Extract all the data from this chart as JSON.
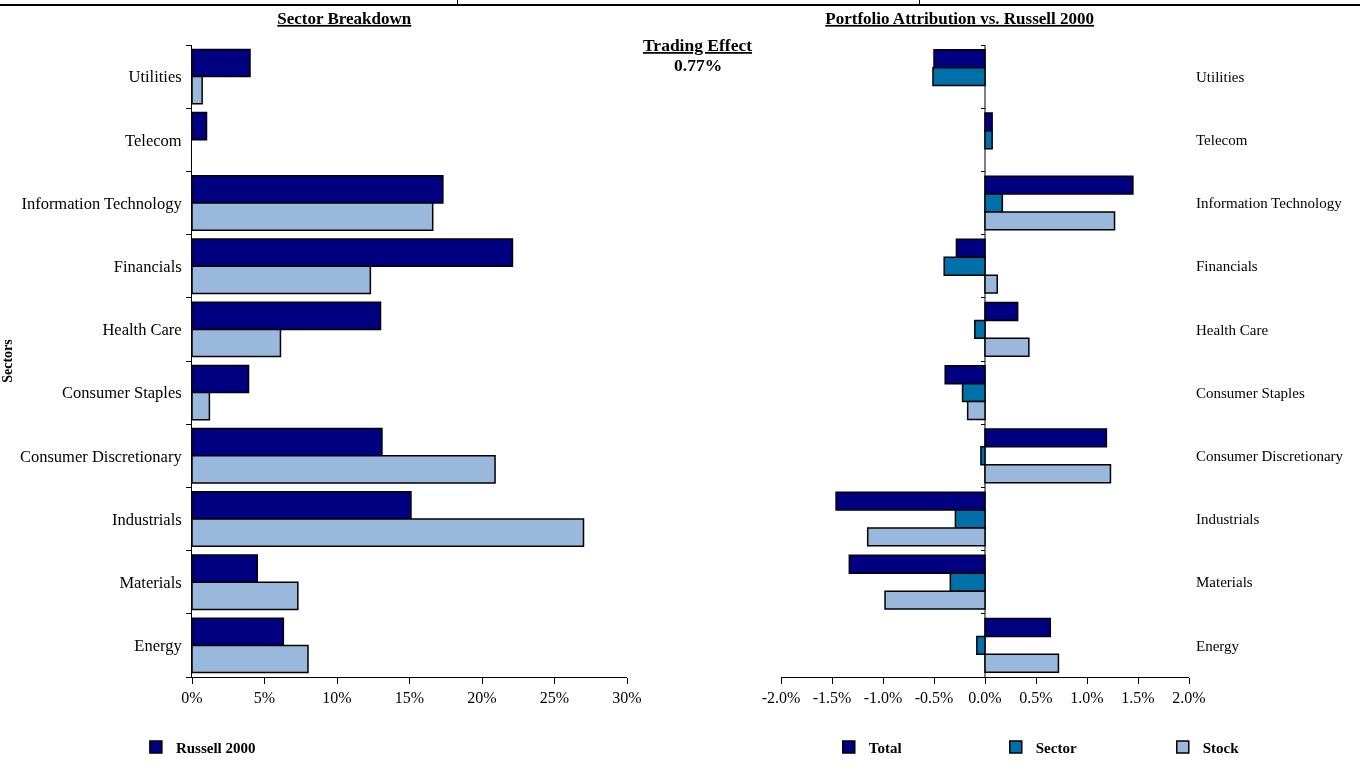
{
  "chart_data": [
    {
      "type": "bar",
      "orientation": "horizontal",
      "title": "Sector Breakdown",
      "ylabel": "Sectors",
      "annotations": [
        "Trading Effect",
        "0.77%"
      ],
      "categories": [
        "Utilities",
        "Telecom",
        "Information Technology",
        "Financials",
        "Health Care",
        "Consumer Staples",
        "Consumer Discretionary",
        "Industrials",
        "Materials",
        "Energy"
      ],
      "series": [
        {
          "name": "Russell 2000",
          "color": "#000080",
          "values": [
            4.0,
            1.0,
            17.3,
            22.1,
            13.0,
            3.9,
            13.1,
            15.1,
            4.5,
            6.3
          ]
        },
        {
          "color": "#9ab8dc",
          "values": [
            0.7,
            null,
            16.6,
            12.3,
            6.1,
            1.2,
            20.9,
            27.0,
            7.3,
            8.0
          ]
        }
      ],
      "xlim": [
        0,
        30
      ],
      "xticks": [
        {
          "value": 0,
          "label": "0%"
        },
        {
          "value": 5,
          "label": "5%"
        },
        {
          "value": 10,
          "label": "10%"
        },
        {
          "value": 15,
          "label": "15%"
        },
        {
          "value": 20,
          "label": "20%"
        },
        {
          "value": 25,
          "label": "25%"
        },
        {
          "value": 30,
          "label": "30%"
        }
      ],
      "grid": false,
      "legend": "bottom"
    },
    {
      "type": "bar",
      "orientation": "horizontal",
      "title": "Portfolio Attribution vs. Russell 2000",
      "categories": [
        "Utilities",
        "Telecom",
        "Information Technology",
        "Financials",
        "Health Care",
        "Consumer Staples",
        "Consumer Discretionary",
        "Industrials",
        "Materials",
        "Energy"
      ],
      "series": [
        {
          "name": "Total",
          "color": "#000080",
          "values": [
            -0.5,
            0.07,
            1.45,
            -0.28,
            0.32,
            -0.39,
            1.19,
            -1.46,
            -1.33,
            0.64
          ]
        },
        {
          "name": "Sector",
          "color": "#0070a8",
          "values": [
            -0.51,
            0.07,
            0.17,
            -0.4,
            -0.1,
            -0.22,
            -0.04,
            -0.29,
            -0.34,
            -0.08
          ]
        },
        {
          "name": "Stock",
          "color": "#9ab8dc",
          "values": [
            null,
            null,
            1.27,
            0.12,
            0.43,
            -0.17,
            1.23,
            -1.15,
            -0.98,
            0.72
          ]
        }
      ],
      "xlim": [
        -2,
        2
      ],
      "xticks": [
        {
          "value": -2,
          "label": "-2.0%"
        },
        {
          "value": -1.5,
          "label": "-1.5%"
        },
        {
          "value": -1,
          "label": "-1.0%"
        },
        {
          "value": -0.5,
          "label": "-0.5%"
        },
        {
          "value": 0,
          "label": "0.0%"
        },
        {
          "value": 0.5,
          "label": "0.5%"
        },
        {
          "value": 1,
          "label": "1.0%"
        },
        {
          "value": 1.5,
          "label": "1.5%"
        },
        {
          "value": 2,
          "label": "2.0%"
        }
      ],
      "ref_lines": [
        {
          "axis": "x",
          "value": 0,
          "color": "#000000"
        }
      ],
      "grid": false,
      "legend": "bottom"
    }
  ]
}
